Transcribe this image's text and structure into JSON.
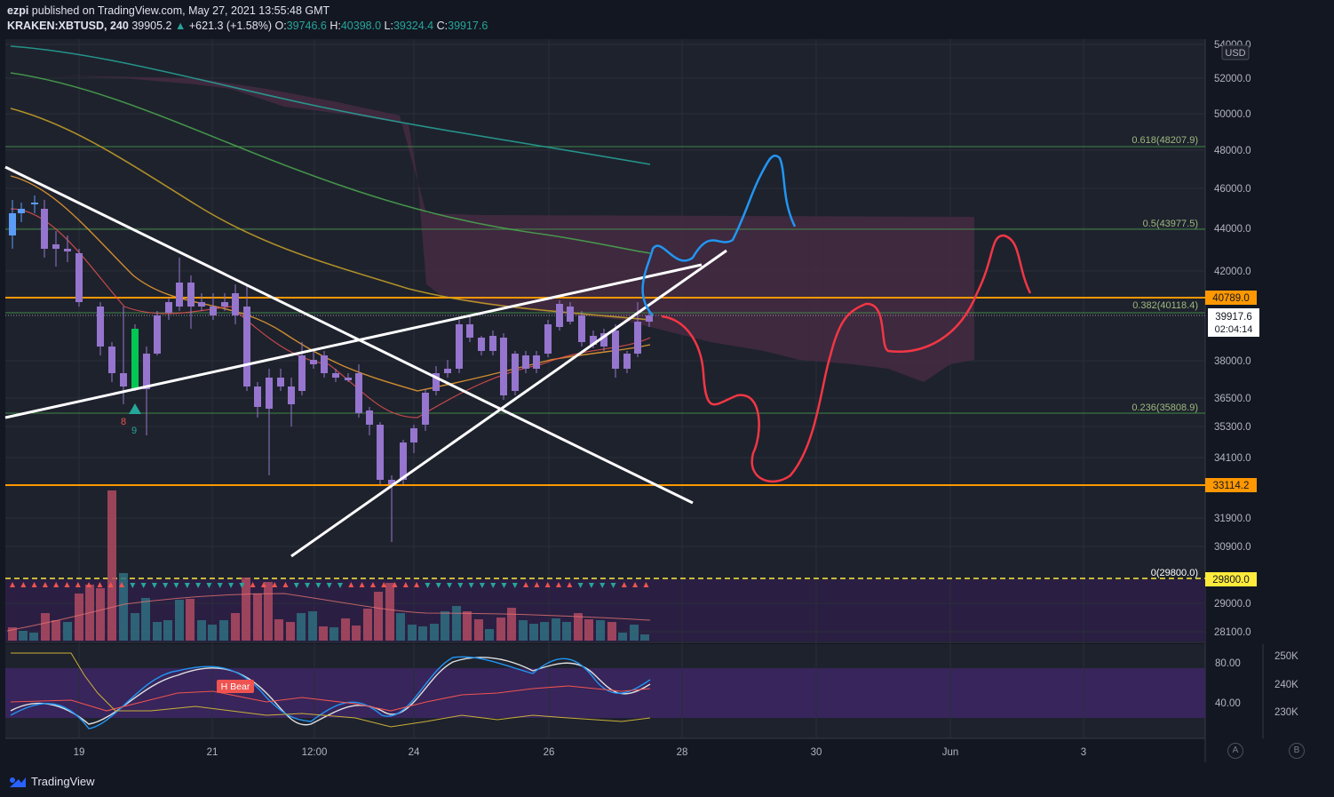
{
  "header": {
    "publisher": "ezpi",
    "published_text": "published on TradingView.com, May 27, 2021 13:55:48 GMT",
    "symbol": "KRAKEN:XBTUSD, 240",
    "last": "39905.2",
    "change": "+621.3 (+1.58%)",
    "o_label": "O:",
    "o": "39746.6",
    "h_label": "H:",
    "h": "40398.0",
    "l_label": "L:",
    "l": "39324.4",
    "c_label": "C:",
    "c": "39917.6"
  },
  "price_axis": {
    "currency": "USD",
    "ticks": [
      "54000.0",
      "52000.0",
      "50000.0",
      "48000.0",
      "46000.0",
      "44000.0",
      "42000.0",
      "38000.0",
      "36500.0",
      "35300.0",
      "34100.0",
      "31900.0",
      "30900.0",
      "29000.0",
      "28100.0"
    ],
    "current_price": "39917.6",
    "countdown": "02:04:14",
    "level_labels": [
      {
        "text": "40789.0",
        "color": "#ff9800"
      },
      {
        "text": "33114.2",
        "color": "#ff9800"
      },
      {
        "text": "29800.0",
        "color": "#ffeb3b"
      }
    ]
  },
  "fib_labels": [
    "0.618(48207.9)",
    "0.5(43977.5)",
    "0.382(40118.4)",
    "0.236(35808.9)",
    "0(29800.0)"
  ],
  "oscillator_axis": {
    "left": [
      "80.00",
      "40.00"
    ],
    "right": [
      "250K",
      "240K",
      "230K"
    ]
  },
  "badge": "H Bear",
  "seq_labels": {
    "red": "8",
    "green": "9"
  },
  "time_axis": [
    "19",
    "21",
    "12:00",
    "24",
    "26",
    "28",
    "30",
    "Jun",
    "3"
  ],
  "footer": {
    "logo": "TradingView",
    "a": "A",
    "b": "B"
  },
  "colors": {
    "bg": "#131722",
    "panel": "#1e222d",
    "up": "#5b9cf6",
    "down": "#9575cd",
    "orange": "#ff9800",
    "fib": "#4caf50",
    "white": "#ffffff",
    "blue_path": "#2196f3",
    "red_path": "#f23645",
    "purple_band": "#2b1f45"
  },
  "chart_data": {
    "type": "line",
    "title": "KRAKEN:XBTUSD, 240",
    "price_range": [
      28000,
      54000
    ],
    "horizontal_levels": [
      40789.0,
      33114.2,
      29800.0
    ],
    "fib_levels": [
      {
        "ratio": "0.618",
        "price": 48207.9
      },
      {
        "ratio": "0.5",
        "price": 43977.5
      },
      {
        "ratio": "0.382",
        "price": 40118.4
      },
      {
        "ratio": "0.236",
        "price": 35808.9
      },
      {
        "ratio": "0",
        "price": 29800.0
      }
    ],
    "last_price": 39917.6
  }
}
